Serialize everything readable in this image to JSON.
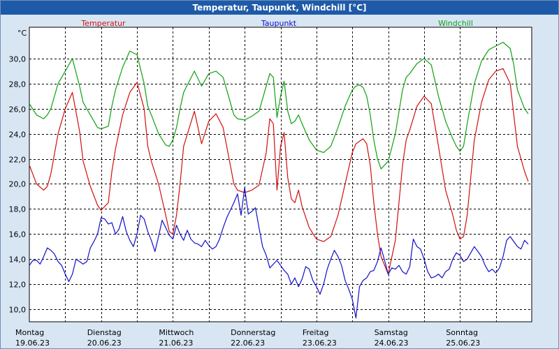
{
  "title": "Temperatur, Taupunkt, Windchill [°C]",
  "chart_data": {
    "type": "line",
    "title": "Temperatur, Taupunkt, Windchill [°C]",
    "ylabel": "°C",
    "ylim": [
      9,
      32.5
    ],
    "y_ticks": [
      10,
      12,
      14,
      16,
      18,
      20,
      22,
      24,
      26,
      28,
      30
    ],
    "y_tick_labels": [
      "10,0",
      "12,0",
      "14,0",
      "16,0",
      "18,0",
      "20,0",
      "22,0",
      "24,0",
      "26,0",
      "28,0",
      "30,0"
    ],
    "xlim": [
      0,
      7
    ],
    "x_unit": "days from 19.06.23 00:00",
    "day_labels": [
      {
        "day": "Montag",
        "date": "19.06.23"
      },
      {
        "day": "Dienstag",
        "date": "20.06.23"
      },
      {
        "day": "Mittwoch",
        "date": "21.06.23"
      },
      {
        "day": "Donnerstag",
        "date": "22.06.23"
      },
      {
        "day": "Freitag",
        "date": "23.06.23"
      },
      {
        "day": "Samstag",
        "date": "24.06.23"
      },
      {
        "day": "Sonntag",
        "date": "25.06.23"
      }
    ],
    "grid": true,
    "legend": "top",
    "series": [
      {
        "name": "Temperatur",
        "color": "#d01010",
        "x": [
          0,
          0.1,
          0.2,
          0.25,
          0.3,
          0.4,
          0.5,
          0.6,
          0.7,
          0.75,
          0.85,
          0.95,
          1.0,
          1.1,
          1.15,
          1.2,
          1.3,
          1.4,
          1.5,
          1.6,
          1.65,
          1.7,
          1.8,
          1.9,
          1.95,
          2.0,
          2.05,
          2.1,
          2.15,
          2.3,
          2.4,
          2.5,
          2.6,
          2.7,
          2.8,
          2.85,
          2.9,
          3.0,
          3.1,
          3.2,
          3.3,
          3.35,
          3.4,
          3.45,
          3.5,
          3.55,
          3.6,
          3.65,
          3.7,
          3.75,
          3.8,
          3.9,
          4.0,
          4.1,
          4.2,
          4.3,
          4.4,
          4.5,
          4.55,
          4.6,
          4.65,
          4.7,
          4.75,
          4.8,
          4.85,
          4.9,
          5.0,
          5.1,
          5.2,
          5.25,
          5.3,
          5.4,
          5.5,
          5.6,
          5.7,
          5.8,
          5.9,
          5.95,
          6.0,
          6.05,
          6.1,
          6.2,
          6.3,
          6.4,
          6.5,
          6.6,
          6.7,
          6.75,
          6.8,
          6.9,
          6.95
        ],
        "values": [
          21.5,
          20.0,
          19.5,
          19.8,
          20.8,
          24.0,
          26.0,
          27.3,
          24.2,
          21.8,
          19.8,
          18.3,
          17.9,
          18.5,
          21.0,
          22.8,
          25.5,
          27.3,
          28.1,
          26.0,
          23.0,
          21.8,
          20.0,
          17.5,
          16.2,
          16.0,
          17.5,
          20.0,
          23.0,
          25.8,
          23.2,
          25.0,
          25.6,
          24.5,
          21.5,
          20.0,
          19.5,
          19.3,
          19.5,
          19.9,
          22.5,
          25.2,
          24.8,
          19.5,
          23.0,
          24.1,
          20.5,
          18.8,
          18.5,
          19.5,
          18.2,
          16.5,
          15.6,
          15.4,
          15.8,
          17.5,
          20.0,
          22.5,
          23.2,
          23.4,
          23.6,
          23.2,
          21.5,
          18.5,
          16.0,
          14.2,
          12.8,
          15.5,
          21.5,
          23.5,
          24.3,
          26.2,
          27.0,
          26.4,
          23.0,
          19.5,
          17.5,
          16.3,
          15.6,
          15.8,
          17.5,
          23.5,
          26.5,
          28.3,
          29.0,
          29.2,
          28.0,
          25.5,
          23.0,
          21.0,
          20.2
        ]
      },
      {
        "name": "Taupunkt",
        "color": "#1010c8",
        "x": [
          0,
          0.05,
          0.1,
          0.15,
          0.2,
          0.25,
          0.3,
          0.35,
          0.4,
          0.45,
          0.5,
          0.55,
          0.6,
          0.65,
          0.7,
          0.75,
          0.8,
          0.85,
          0.9,
          0.95,
          1.0,
          1.05,
          1.1,
          1.15,
          1.2,
          1.25,
          1.3,
          1.35,
          1.4,
          1.45,
          1.5,
          1.55,
          1.6,
          1.65,
          1.7,
          1.75,
          1.8,
          1.85,
          1.9,
          1.95,
          2.0,
          2.05,
          2.1,
          2.15,
          2.2,
          2.25,
          2.3,
          2.35,
          2.4,
          2.45,
          2.5,
          2.55,
          2.6,
          2.65,
          2.7,
          2.75,
          2.8,
          2.85,
          2.9,
          2.95,
          3.0,
          3.05,
          3.1,
          3.15,
          3.2,
          3.25,
          3.3,
          3.35,
          3.4,
          3.45,
          3.5,
          3.55,
          3.6,
          3.65,
          3.7,
          3.75,
          3.8,
          3.85,
          3.9,
          3.95,
          4.0,
          4.05,
          4.1,
          4.15,
          4.2,
          4.25,
          4.3,
          4.35,
          4.4,
          4.45,
          4.5,
          4.55,
          4.6,
          4.65,
          4.7,
          4.75,
          4.8,
          4.85,
          4.9,
          4.95,
          5.0,
          5.05,
          5.1,
          5.15,
          5.2,
          5.25,
          5.3,
          5.35,
          5.4,
          5.45,
          5.5,
          5.55,
          5.6,
          5.65,
          5.7,
          5.75,
          5.8,
          5.85,
          5.9,
          5.95,
          6.0,
          6.05,
          6.1,
          6.15,
          6.2,
          6.25,
          6.3,
          6.35,
          6.4,
          6.45,
          6.5,
          6.55,
          6.6,
          6.65,
          6.7,
          6.75,
          6.8,
          6.85,
          6.9,
          6.95
        ],
        "values": [
          13.5,
          13.9,
          13.9,
          13.6,
          14.2,
          14.9,
          14.7,
          14.4,
          13.8,
          13.5,
          12.8,
          12.2,
          12.8,
          14.0,
          13.8,
          13.6,
          13.8,
          14.9,
          15.4,
          16.0,
          17.3,
          17.2,
          16.8,
          16.9,
          16.0,
          16.4,
          17.4,
          16.2,
          15.5,
          15.0,
          16.0,
          17.5,
          17.2,
          16.2,
          15.5,
          14.6,
          15.8,
          17.1,
          16.5,
          15.9,
          15.6,
          16.7,
          16.0,
          15.5,
          16.3,
          15.6,
          15.3,
          15.2,
          15.0,
          15.5,
          15.1,
          14.8,
          15.0,
          15.6,
          16.5,
          17.3,
          17.9,
          18.5,
          19.2,
          17.5,
          19.7,
          17.6,
          17.8,
          18.1,
          16.5,
          15.0,
          14.3,
          13.3,
          13.6,
          13.9,
          13.5,
          13.1,
          12.8,
          12.0,
          12.5,
          11.8,
          12.4,
          13.4,
          13.2,
          12.3,
          11.8,
          11.2,
          12.0,
          13.2,
          14.0,
          14.7,
          14.2,
          13.5,
          12.3,
          11.6,
          10.8,
          9.3,
          11.8,
          12.3,
          12.5,
          13.0,
          13.1,
          13.8,
          14.9,
          13.9,
          12.8,
          13.3,
          13.2,
          13.5,
          13.0,
          12.8,
          13.4,
          15.6,
          15.0,
          14.8,
          14.0,
          13.0,
          12.5,
          12.6,
          12.8,
          12.5,
          13.0,
          13.2,
          14.0,
          14.5,
          14.3,
          13.8,
          14.0,
          14.5,
          15.0,
          14.6,
          14.2,
          13.5,
          13.0,
          13.2,
          12.9,
          13.3,
          14.2,
          15.5,
          15.8,
          15.4,
          15.0,
          14.8,
          15.5,
          15.2
        ]
      },
      {
        "name": "Windchill",
        "color": "#10a010",
        "x": [
          0,
          0.1,
          0.2,
          0.25,
          0.3,
          0.4,
          0.5,
          0.6,
          0.7,
          0.75,
          0.85,
          0.95,
          1.0,
          1.1,
          1.15,
          1.2,
          1.3,
          1.4,
          1.5,
          1.6,
          1.65,
          1.7,
          1.8,
          1.9,
          1.95,
          2.0,
          2.05,
          2.1,
          2.15,
          2.3,
          2.4,
          2.5,
          2.6,
          2.7,
          2.8,
          2.85,
          2.9,
          3.0,
          3.1,
          3.2,
          3.3,
          3.35,
          3.4,
          3.45,
          3.5,
          3.55,
          3.6,
          3.65,
          3.7,
          3.75,
          3.8,
          3.9,
          4.0,
          4.1,
          4.2,
          4.3,
          4.4,
          4.5,
          4.55,
          4.6,
          4.65,
          4.7,
          4.75,
          4.8,
          4.85,
          4.9,
          5.0,
          5.1,
          5.2,
          5.25,
          5.3,
          5.4,
          5.5,
          5.6,
          5.7,
          5.8,
          5.9,
          5.95,
          6.0,
          6.05,
          6.1,
          6.2,
          6.3,
          6.4,
          6.5,
          6.6,
          6.7,
          6.75,
          6.8,
          6.9,
          6.95
        ],
        "values": [
          26.4,
          25.5,
          25.2,
          25.5,
          26.0,
          28.0,
          29.0,
          30.0,
          27.8,
          26.5,
          25.5,
          24.5,
          24.4,
          24.6,
          26.2,
          27.5,
          29.3,
          30.6,
          30.3,
          28.0,
          26.2,
          25.5,
          24.0,
          23.1,
          23.0,
          23.5,
          24.5,
          26.0,
          27.3,
          29.0,
          27.8,
          28.8,
          29.0,
          28.5,
          26.5,
          25.5,
          25.2,
          25.1,
          25.4,
          25.8,
          27.8,
          28.8,
          28.5,
          25.3,
          27.0,
          28.2,
          25.8,
          24.8,
          25.0,
          25.5,
          24.8,
          23.5,
          22.7,
          22.5,
          23.0,
          24.5,
          26.2,
          27.5,
          27.8,
          27.9,
          27.7,
          27.0,
          25.5,
          23.5,
          22.0,
          21.2,
          21.8,
          24.0,
          27.5,
          28.5,
          28.8,
          29.6,
          30.0,
          29.5,
          27.0,
          25.0,
          23.6,
          23.0,
          22.6,
          23.0,
          24.8,
          28.0,
          29.8,
          30.7,
          31.0,
          31.3,
          30.8,
          29.5,
          27.5,
          26.0,
          25.6
        ]
      }
    ]
  }
}
